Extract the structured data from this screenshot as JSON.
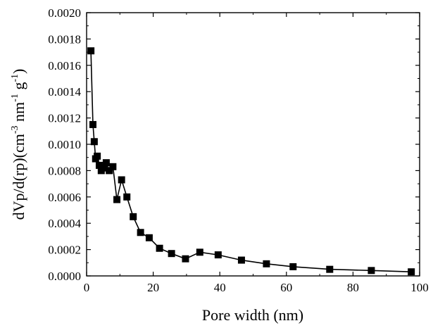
{
  "chart_data": {
    "type": "line",
    "xlabel": "Pore width (nm)",
    "ylabel": {
      "text": "dVp/d(rp)(cm",
      "sup1": "-3",
      "mid": " nm",
      "sup2": "-1",
      "mid2": " g",
      "sup3": "-1",
      "end": ")"
    },
    "xlim": [
      0,
      100
    ],
    "ylim": [
      0,
      0.002
    ],
    "xticks": [
      0,
      20,
      40,
      60,
      80,
      100
    ],
    "xtick_labels": [
      "0",
      "20",
      "40",
      "60",
      "80",
      "100"
    ],
    "yticks": [
      0,
      0.0002,
      0.0004,
      0.0006,
      0.0008,
      0.001,
      0.0012,
      0.0014,
      0.0016,
      0.0018,
      0.002
    ],
    "ytick_labels": [
      "0.0000",
      "0.0002",
      "0.0004",
      "0.0006",
      "0.0008",
      "0.0010",
      "0.0012",
      "0.0014",
      "0.0016",
      "0.0018",
      "0.0020"
    ],
    "grid": false,
    "marker": "square",
    "line_color": "#000000",
    "series": [
      {
        "x": [
          1.3,
          1.9,
          2.3,
          2.7,
          3.2,
          3.8,
          4.4,
          5.1,
          5.9,
          6.8,
          7.9,
          9.1,
          10.5,
          12.1,
          14.0,
          16.2,
          18.8,
          21.9,
          25.5,
          29.7,
          34.0,
          39.5,
          46.5,
          54.0,
          62.0,
          73.0,
          85.5,
          97.5
        ],
        "y": [
          0.00171,
          0.00115,
          0.00102,
          0.00089,
          0.00091,
          0.00084,
          0.0008,
          0.00082,
          0.00086,
          0.0008,
          0.00083,
          0.00058,
          0.00073,
          0.0006,
          0.00045,
          0.00033,
          0.00029,
          0.00021,
          0.00017,
          0.00013,
          0.00018,
          0.00016,
          0.00012,
          9.2e-05,
          7e-05,
          5e-05,
          4.1e-05,
          3.1e-05
        ]
      }
    ]
  }
}
